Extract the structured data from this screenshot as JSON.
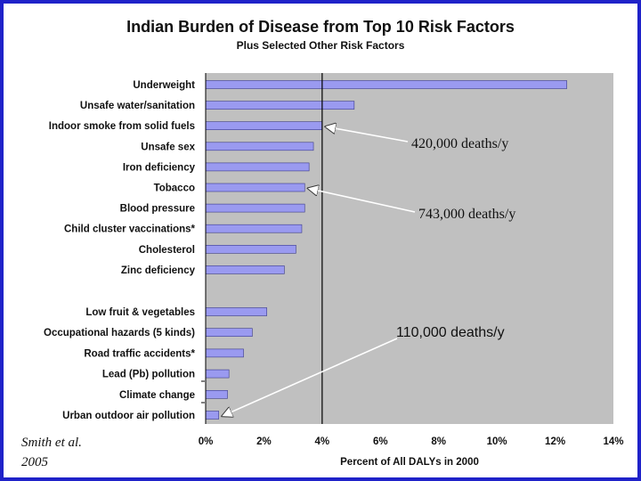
{
  "chart_data": {
    "type": "bar",
    "orientation": "horizontal",
    "title": "Indian Burden of Disease from Top 10 Risk Factors",
    "subtitle": "Plus Selected Other Risk Factors",
    "xlabel": "Percent of All DALYs in 2000",
    "xlim": [
      0,
      14
    ],
    "xticks": [
      "0%",
      "2%",
      "4%",
      "6%",
      "8%",
      "10%",
      "12%",
      "14%"
    ],
    "reference_line_x": 4,
    "colors": {
      "bar": "#9a9af0",
      "plot_bg": "#c0c0c0",
      "frame": "#1f22c9"
    },
    "categories": [
      "Underweight",
      "Unsafe water/sanitation",
      "Indoor smoke from solid fuels",
      "Unsafe sex",
      "Iron deficiency",
      "Tobacco",
      "Blood pressure",
      "Child cluster vaccinations*",
      "Cholesterol",
      "Zinc deficiency",
      "Low fruit & vegetables",
      "Occupational hazards (5 kinds)",
      "Road traffic accidents*",
      "Lead (Pb) pollution",
      "Climate change",
      "Urban outdoor air pollution"
    ],
    "values": [
      12.4,
      5.1,
      4.0,
      3.7,
      3.55,
      3.4,
      3.4,
      3.3,
      3.1,
      2.7,
      2.1,
      1.6,
      1.3,
      0.8,
      0.75,
      0.45
    ],
    "annotations": [
      {
        "text": "420,000 deaths/y",
        "target_index": 2
      },
      {
        "text": "743,000 deaths/y",
        "target_index": 5
      },
      {
        "text": "110,000 deaths/y",
        "target_index": 15
      }
    ]
  },
  "citation": {
    "line1": "Smith et al.",
    "line2": "2005"
  }
}
